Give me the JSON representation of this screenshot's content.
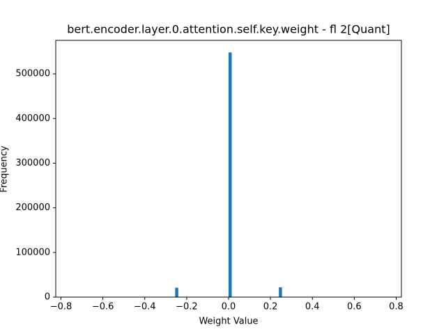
{
  "chart_data": {
    "type": "histogram",
    "title": "bert.encoder.layer.0.attention.self.key.weight - fl 2[Quant]",
    "x_label": "Weight Value",
    "y_label": "Frequency",
    "color": "#1f77b4",
    "bins": [
      -0.75,
      -0.735,
      -0.72,
      -0.705,
      -0.69,
      -0.675,
      -0.66,
      -0.645,
      -0.63,
      -0.615,
      -0.6,
      -0.585,
      -0.57,
      -0.555,
      -0.54,
      -0.525,
      -0.51,
      -0.495,
      -0.48,
      -0.465,
      -0.45,
      -0.435,
      -0.42,
      -0.405,
      -0.39,
      -0.375,
      -0.36,
      -0.345,
      -0.33,
      -0.315,
      -0.3,
      -0.285,
      -0.27,
      -0.255,
      -0.24,
      -0.225,
      -0.21,
      -0.195,
      -0.18,
      -0.165,
      -0.15,
      -0.135,
      -0.12,
      -0.105,
      -0.09,
      -0.075,
      -0.06,
      -0.045,
      -0.03,
      -0.015,
      0,
      0.015,
      0.03,
      0.045,
      0.06,
      0.075,
      0.09,
      0.105,
      0.12,
      0.135,
      0.15,
      0.165,
      0.18,
      0.195,
      0.21,
      0.225,
      0.24,
      0.255,
      0.27,
      0.285,
      0.3,
      0.315,
      0.33,
      0.345,
      0.36,
      0.375,
      0.39,
      0.405,
      0.42,
      0.435,
      0.45,
      0.465,
      0.48,
      0.495,
      0.51,
      0.525,
      0.54,
      0.555,
      0.57,
      0.585,
      0.6,
      0.615,
      0.63,
      0.645,
      0.66,
      0.675,
      0.69,
      0.705,
      0.72,
      0.735,
      0.75
    ],
    "counts": [
      0,
      0,
      0,
      0,
      0,
      0,
      0,
      0,
      0,
      0,
      0,
      0,
      0,
      0,
      0,
      0,
      0,
      0,
      0,
      0,
      0,
      0,
      0,
      0,
      0,
      0,
      0,
      0,
      0,
      0,
      0,
      0,
      0,
      21000,
      0,
      0,
      0,
      0,
      0,
      0,
      0,
      0,
      0,
      0,
      0,
      0,
      0,
      0,
      0,
      0,
      548000,
      0,
      0,
      0,
      0,
      0,
      0,
      0,
      0,
      0,
      0,
      0,
      0,
      0,
      0,
      0,
      22000,
      0,
      0,
      0,
      0,
      0,
      0,
      0,
      0,
      0,
      0,
      0,
      0,
      0,
      0,
      0,
      0,
      0,
      0,
      0,
      0,
      0,
      0,
      0,
      0,
      0,
      0,
      0,
      0,
      0,
      0,
      0,
      0,
      0
    ],
    "xlim": [
      -0.825,
      0.825
    ],
    "xticks": [
      {
        "value": -0.8,
        "label": "−0.8"
      },
      {
        "value": -0.6,
        "label": "−0.6"
      },
      {
        "value": -0.4,
        "label": "−0.4"
      },
      {
        "value": -0.2,
        "label": "−0.2"
      },
      {
        "value": 0,
        "label": "0.0"
      },
      {
        "value": 0.2,
        "label": "0.2"
      },
      {
        "value": 0.4,
        "label": "0.4"
      },
      {
        "value": 0.6,
        "label": "0.6"
      },
      {
        "value": 0.8,
        "label": "0.8"
      }
    ],
    "ylim": [
      0,
      575000
    ],
    "yticks": [
      0,
      100000,
      200000,
      300000,
      400000,
      500000
    ]
  }
}
